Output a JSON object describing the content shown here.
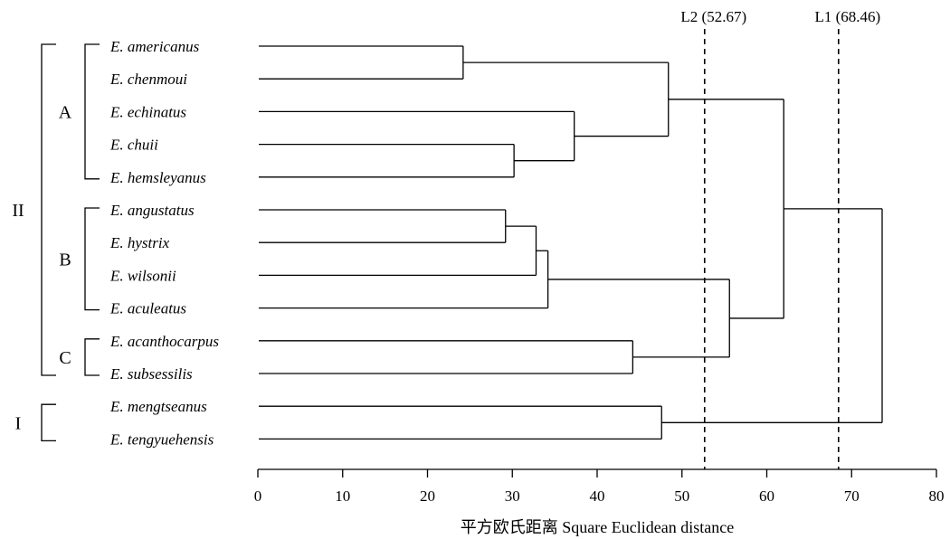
{
  "chart_data": {
    "type": "dendrogram",
    "xlabel": "平方欧氏距离 Square Euclidean distance",
    "xlim": [
      0,
      80
    ],
    "xticks": [
      0,
      10,
      20,
      30,
      40,
      50,
      60,
      70,
      80
    ],
    "grid": false,
    "leaves": [
      "E. americanus",
      "E. chenmoui",
      "E. echinatus",
      "E. chuii",
      "E. hemsleyanus",
      "E. angustatus",
      "E. hystrix",
      "E. wilsonii",
      "E. aculeatus",
      "E. acanthocarpus",
      "E. subsessilis",
      "E. mengtseanus",
      "E. tengyuehensis"
    ],
    "merges": [
      {
        "id": "m1",
        "children": [
          "E. americanus",
          "E. chenmoui"
        ],
        "distance": 24.2
      },
      {
        "id": "m2",
        "children": [
          "E. angustatus",
          "E. hystrix"
        ],
        "distance": 29.2
      },
      {
        "id": "m3",
        "children": [
          "E. chuii",
          "E. hemsleyanus"
        ],
        "distance": 30.2
      },
      {
        "id": "m4",
        "children": [
          "m2",
          "E. wilsonii"
        ],
        "distance": 32.8
      },
      {
        "id": "m5",
        "children": [
          "m4",
          "E. aculeatus"
        ],
        "distance": 34.2
      },
      {
        "id": "m6",
        "children": [
          "E. echinatus",
          "m3"
        ],
        "distance": 37.3
      },
      {
        "id": "m7",
        "children": [
          "E. acanthocarpus",
          "E. subsessilis"
        ],
        "distance": 44.2
      },
      {
        "id": "m8",
        "children": [
          "E. mengtseanus",
          "E. tengyuehensis"
        ],
        "distance": 47.6
      },
      {
        "id": "m9",
        "children": [
          "m1",
          "m6"
        ],
        "distance": 48.4
      },
      {
        "id": "m10",
        "children": [
          "m5",
          "m7"
        ],
        "distance": 55.6
      },
      {
        "id": "m11",
        "children": [
          "m9",
          "m10"
        ],
        "distance": 62.0
      },
      {
        "id": "m12",
        "children": [
          "m11",
          "m8"
        ],
        "distance": 73.6
      }
    ],
    "cut_lines": [
      {
        "label": "L2 (52.67)",
        "distance": 52.67
      },
      {
        "label": "L1 (68.46)",
        "distance": 68.46
      }
    ],
    "groups": [
      {
        "label": "II",
        "from": "E. americanus",
        "to": "E. subsessilis",
        "level": "outer"
      },
      {
        "label": "I",
        "from": "E. mengtseanus",
        "to": "E. tengyuehensis",
        "level": "outer"
      },
      {
        "label": "A",
        "from": "E. americanus",
        "to": "E. hemsleyanus",
        "level": "inner"
      },
      {
        "label": "B",
        "from": "E. angustatus",
        "to": "E. aculeatus",
        "level": "inner"
      },
      {
        "label": "C",
        "from": "E. acanthocarpus",
        "to": "E. subsessilis",
        "level": "inner"
      }
    ]
  }
}
